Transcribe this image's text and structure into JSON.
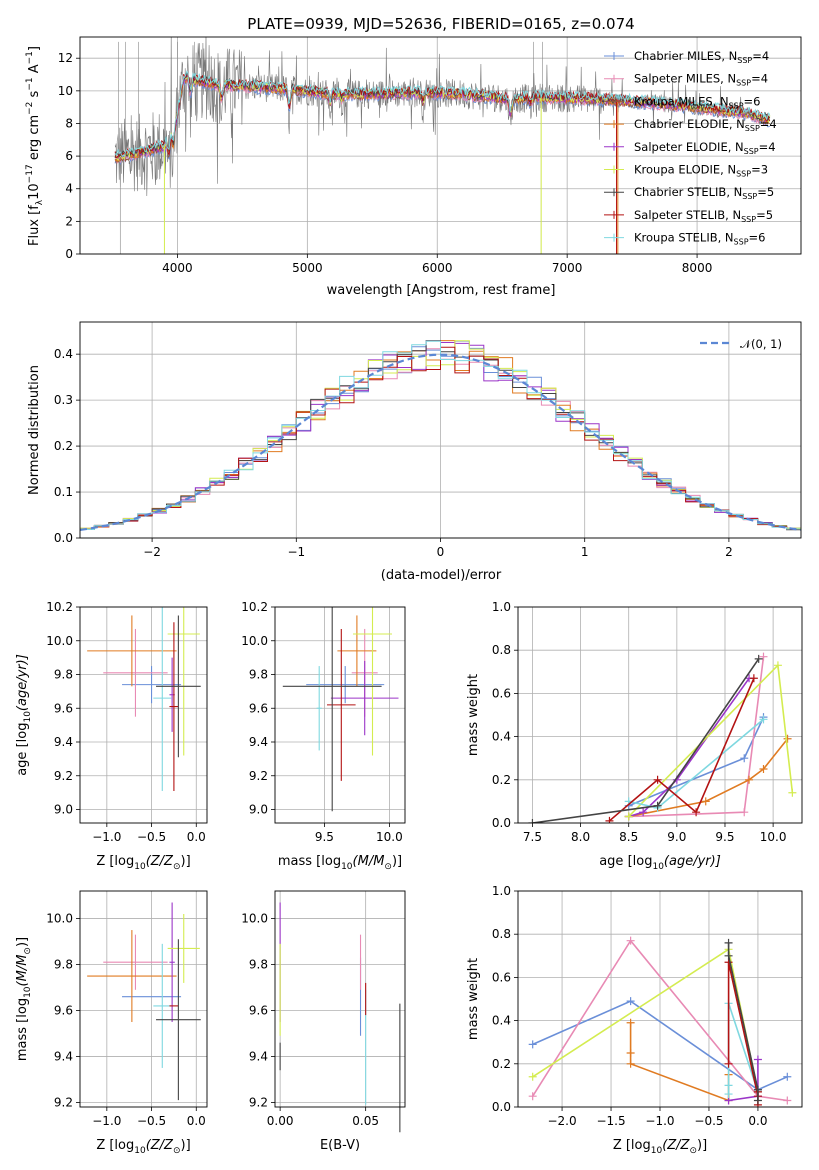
{
  "colors": {
    "Chabrier MILES": "#6a8fd8",
    "Salpeter MILES": "#e88ab4",
    "Kroupa MILES": "#8f5a3e",
    "Chabrier ELODIE": "#e07b22",
    "Salpeter ELODIE": "#9b35c8",
    "Kroupa ELODIE": "#d4ec50",
    "Chabrier STELIB": "#444444",
    "Salpeter STELIB": "#b31313",
    "Kroupa STELIB": "#7fd8e0"
  },
  "chart_data": [
    {
      "type": "line",
      "id": "spectrum",
      "title": "PLATE=0939, MJD=52636, FIBERID=0165, z=0.074",
      "xlabel": "wavelength [Angstrom, rest frame]",
      "ylabel": "Flux [f",
      "ylabel_sub": "λ",
      "ylabel_rest": "10",
      "ylabel_sup": "−17",
      "ylabel_units": " erg cm",
      "xlim": [
        3250,
        8800
      ],
      "ylim": [
        0,
        13.3
      ],
      "xticks": [
        4000,
        5000,
        6000,
        7000,
        8000
      ],
      "yticks": [
        0,
        2,
        4,
        6,
        8,
        10,
        12
      ],
      "legend_loc": "right",
      "legend": [
        {
          "label": "Chabrier MILES, N",
          "sub": "SSP",
          "val": "=4",
          "color": "#6a8fd8"
        },
        {
          "label": "Salpeter MILES, N",
          "sub": "SSP",
          "val": "=4",
          "color": "#e88ab4"
        },
        {
          "label": "Kroupa MILES, N",
          "sub": "SSP",
          "val": "=6",
          "color": "#8f5a3e"
        },
        {
          "label": "Chabrier ELODIE, N",
          "sub": "SSP",
          "val": "=4",
          "color": "#e07b22"
        },
        {
          "label": "Salpeter ELODIE, N",
          "sub": "SSP",
          "val": "=4",
          "color": "#9b35c8"
        },
        {
          "label": "Kroupa ELODIE, N",
          "sub": "SSP",
          "val": "=3",
          "color": "#d4ec50"
        },
        {
          "label": "Chabrier STELIB, N",
          "sub": "SSP",
          "val": "=5",
          "color": "#444444"
        },
        {
          "label": "Salpeter STELIB, N",
          "sub": "SSP",
          "val": "=5",
          "color": "#b31313"
        },
        {
          "label": "Kroupa STELIB, N",
          "sub": "SSP",
          "val": "=6",
          "color": "#7fd8e0"
        }
      ],
      "continuum": [
        [
          3520,
          5.9
        ],
        [
          3700,
          6.2
        ],
        [
          3900,
          6.6
        ],
        [
          3990,
          8.2
        ],
        [
          4050,
          10.8
        ],
        [
          4300,
          10.4
        ],
        [
          4500,
          10.3
        ],
        [
          4861,
          10.1
        ],
        [
          5200,
          9.8
        ],
        [
          5500,
          9.8
        ],
        [
          5900,
          9.9
        ],
        [
          6200,
          9.8
        ],
        [
          6563,
          9.5
        ],
        [
          6800,
          9.6
        ],
        [
          7200,
          9.5
        ],
        [
          7600,
          9.3
        ],
        [
          8000,
          9.0
        ],
        [
          8400,
          8.6
        ],
        [
          8550,
          8.2
        ]
      ]
    },
    {
      "type": "area",
      "id": "residuals",
      "xlabel": "(data-model)/error",
      "ylabel": "Normed distribution",
      "xlim": [
        -2.5,
        2.5
      ],
      "ylim": [
        0,
        0.47
      ],
      "xticks": [
        -2,
        -1,
        0,
        1,
        2
      ],
      "xtick_labels": [
        "−2",
        "−1",
        "0",
        "1",
        "2"
      ],
      "yticks": [
        0,
        0.1,
        0.2,
        0.3,
        0.4
      ],
      "legend_loc": "top-right",
      "legend_label": "𝒩(0, 1)",
      "curve": {
        "mu": 0,
        "sigma": 1
      }
    },
    {
      "type": "scatter",
      "id": "Z-age",
      "xlabel": "Z [log",
      "xlabel_sub": "10",
      "xlabel_rest": "(Z/Z",
      "xlabel_sun": "⊙",
      "xlabel_end": ")]",
      "ylabel": "age  [log",
      "ylabel_sub": "10",
      "ylabel_rest": "(age/yr)]",
      "xlim": [
        -1.3,
        0.12
      ],
      "ylim": [
        8.92,
        10.2
      ],
      "xticks": [
        -1.0,
        -0.5,
        0.0
      ],
      "xtick_labels": [
        "−1.0",
        "−0.5",
        "0.0"
      ],
      "yticks": [
        9.0,
        9.2,
        9.4,
        9.6,
        9.8,
        10.0,
        10.2
      ],
      "points": [
        {
          "x": -0.5,
          "xerr": 0.33,
          "y": 9.74,
          "yerr": 0.11,
          "color": "#6a8fd8"
        },
        {
          "x": -0.68,
          "xerr": 0.36,
          "y": 9.81,
          "yerr": 0.26,
          "color": "#e88ab4"
        },
        {
          "x": -0.72,
          "xerr": 0.5,
          "y": 9.94,
          "yerr": 0.21,
          "color": "#e07b22"
        },
        {
          "x": -0.27,
          "xerr": 0.03,
          "y": 9.68,
          "yerr": 0.22,
          "color": "#9b35c8"
        },
        {
          "x": -0.14,
          "xerr": 0.18,
          "y": 10.04,
          "yerr": 0.72,
          "color": "#d4ec50"
        },
        {
          "x": -0.38,
          "xerr": 0.1,
          "y": 9.66,
          "yerr": 0.55,
          "color": "#7fd8e0"
        },
        {
          "x": -0.25,
          "xerr": 0.05,
          "y": 9.61,
          "yerr": 0.5,
          "color": "#b31313"
        },
        {
          "x": -0.2,
          "xerr": 0.25,
          "y": 9.73,
          "yerr": 0.42,
          "color": "#444444"
        }
      ]
    },
    {
      "type": "scatter",
      "id": "mass-age",
      "xlabel": "mass [log",
      "xlabel_sub": "10",
      "xlabel_rest": "(M/M",
      "xlabel_sun": "⊙",
      "xlabel_end": ")]",
      "xlim": [
        9.12,
        10.12
      ],
      "ylim": [
        8.92,
        10.2
      ],
      "xticks": [
        9.5,
        10.0
      ],
      "yticks": [
        9.0,
        9.2,
        9.4,
        9.6,
        9.8,
        10.0,
        10.2
      ],
      "points": [
        {
          "x": 9.66,
          "xerr": 0.3,
          "y": 9.74,
          "yerr": 0.11,
          "color": "#6a8fd8"
        },
        {
          "x": 9.81,
          "xerr": 0.1,
          "y": 9.81,
          "yerr": 0.26,
          "color": "#e88ab4"
        },
        {
          "x": 9.75,
          "xerr": 0.15,
          "y": 9.94,
          "yerr": 0.21,
          "color": "#e07b22"
        },
        {
          "x": 9.81,
          "xerr": 0.26,
          "y": 9.66,
          "yerr": 0.22,
          "color": "#9b35c8"
        },
        {
          "x": 9.87,
          "xerr": 0.15,
          "y": 10.04,
          "yerr": 0.72,
          "color": "#d4ec50"
        },
        {
          "x": 9.46,
          "xerr": 0.02,
          "y": 9.6,
          "yerr": 0.25,
          "color": "#7fd8e0"
        },
        {
          "x": 9.63,
          "xerr": 0.11,
          "y": 9.62,
          "yerr": 0.45,
          "color": "#b31313"
        },
        {
          "x": 9.56,
          "xerr": 0.38,
          "y": 9.73,
          "yerr": 0.74,
          "color": "#444444"
        }
      ]
    },
    {
      "type": "line",
      "id": "age-weight",
      "xlabel": "age  [log",
      "xlabel_sub": "10",
      "xlabel_rest": "(age/yr)]",
      "ylabel": "mass weight",
      "xlim": [
        7.35,
        10.3
      ],
      "ylim": [
        0,
        1.0
      ],
      "xticks": [
        7.5,
        8.0,
        8.5,
        9.0,
        9.5,
        10.0
      ],
      "yticks": [
        0.0,
        0.2,
        0.4,
        0.6,
        0.8,
        1.0
      ],
      "series": [
        {
          "color": "#6a8fd8",
          "x": [
            8.5,
            9.7,
            9.9
          ],
          "y": [
            0.08,
            0.3,
            0.49
          ]
        },
        {
          "color": "#e88ab4",
          "x": [
            8.5,
            9.7,
            9.9
          ],
          "y": [
            0.03,
            0.05,
            0.77
          ]
        },
        {
          "color": "#e07b22",
          "x": [
            8.5,
            9.3,
            9.75,
            9.9,
            10.15
          ],
          "y": [
            0.03,
            0.1,
            0.2,
            0.25,
            0.39
          ]
        },
        {
          "color": "#9b35c8",
          "x": [
            8.5,
            8.65,
            9.0,
            9.75
          ],
          "y": [
            0.03,
            0.05,
            0.2,
            0.67
          ]
        },
        {
          "color": "#d4ec50",
          "x": [
            8.5,
            10.05,
            10.2
          ],
          "y": [
            0.03,
            0.73,
            0.14
          ]
        },
        {
          "color": "#7fd8e0",
          "x": [
            8.5,
            8.8,
            9.9
          ],
          "y": [
            0.1,
            0.07,
            0.48
          ]
        },
        {
          "color": "#b31313",
          "x": [
            8.3,
            8.8,
            9.2,
            9.8
          ],
          "y": [
            0.01,
            0.2,
            0.05,
            0.67
          ]
        },
        {
          "color": "#444444",
          "x": [
            7.5,
            8.8,
            9.85
          ],
          "y": [
            0.0,
            0.08,
            0.76
          ]
        }
      ]
    },
    {
      "type": "scatter",
      "id": "Z-mass",
      "xlabel": "Z [log",
      "xlabel_sub": "10",
      "xlabel_rest": "(Z/Z",
      "xlabel_sun": "⊙",
      "xlabel_end": ")]",
      "ylabel": "mass [log",
      "ylabel_sub": "10",
      "ylabel_rest": "(M/M",
      "ylabel_sun": "⊙",
      "ylabel_end": ")]",
      "xlim": [
        -1.3,
        0.12
      ],
      "ylim": [
        9.18,
        10.12
      ],
      "xticks": [
        -1.0,
        -0.5,
        0.0
      ],
      "xtick_labels": [
        "−1.0",
        "−0.5",
        "0.0"
      ],
      "yticks": [
        9.2,
        9.4,
        9.6,
        9.8,
        10.0
      ],
      "points": [
        {
          "x": -0.5,
          "xerr": 0.33,
          "y": 9.66,
          "yerr": 0.0,
          "color": "#6a8fd8"
        },
        {
          "x": -0.68,
          "xerr": 0.36,
          "y": 9.81,
          "yerr": 0.12,
          "color": "#e88ab4"
        },
        {
          "x": -0.72,
          "xerr": 0.5,
          "y": 9.75,
          "yerr": 0.2,
          "color": "#e07b22"
        },
        {
          "x": -0.27,
          "xerr": 0.03,
          "y": 9.81,
          "yerr": 0.26,
          "color": "#9b35c8"
        },
        {
          "x": -0.14,
          "xerr": 0.18,
          "y": 9.87,
          "yerr": 0.15,
          "color": "#d4ec50"
        },
        {
          "x": -0.38,
          "xerr": 0.1,
          "y": 9.62,
          "yerr": 0.27,
          "color": "#7fd8e0"
        },
        {
          "x": -0.25,
          "xerr": 0.05,
          "y": 9.62,
          "yerr": 0.0,
          "color": "#b31313"
        },
        {
          "x": -0.2,
          "xerr": 0.25,
          "y": 9.56,
          "yerr": 0.35,
          "color": "#444444"
        }
      ]
    },
    {
      "type": "scatter",
      "id": "ebv-mass",
      "xlabel": "E(B-V)",
      "xlim": [
        -0.003,
        0.073
      ],
      "ylim": [
        9.18,
        10.12
      ],
      "xticks": [
        0.0,
        0.05
      ],
      "xtick_labels": [
        "0.00",
        "0.05"
      ],
      "yticks": [
        9.2,
        9.4,
        9.6,
        9.8,
        10.0
      ],
      "points": [
        {
          "x": 0.047,
          "y": 9.66,
          "yerr": 0.17,
          "color": "#6a8fd8"
        },
        {
          "x": 0.047,
          "y": 9.81,
          "yerr": 0.12,
          "color": "#e88ab4"
        },
        {
          "x": 0.0,
          "y": 9.81,
          "yerr": 0.26,
          "color": "#9b35c8"
        },
        {
          "x": 0.0,
          "y": 9.69,
          "yerr": 0.2,
          "color": "#d4ec50"
        },
        {
          "x": 0.05,
          "y": 9.44,
          "yerr": 0.25,
          "color": "#7fd8e0"
        },
        {
          "x": 0.05,
          "y": 9.65,
          "yerr": 0.07,
          "color": "#b31313"
        },
        {
          "x": 0.07,
          "y": 9.35,
          "yerr": 0.28,
          "color": "#444444"
        },
        {
          "x": 0.0,
          "y": 9.4,
          "yerr": 0.06,
          "color": "#444444"
        }
      ]
    },
    {
      "type": "line",
      "id": "Z-weight",
      "xlabel": "Z [log",
      "xlabel_sub": "10",
      "xlabel_rest": "(Z/Z",
      "xlabel_sun": "⊙",
      "xlabel_end": ")]",
      "ylabel": "mass weight",
      "xlim": [
        -2.45,
        0.45
      ],
      "ylim": [
        0,
        1.0
      ],
      "xticks": [
        -2.0,
        -1.5,
        -1.0,
        -0.5,
        0.0
      ],
      "xtick_labels": [
        "−2.0",
        "−1.5",
        "−1.0",
        "−0.5",
        "0.0"
      ],
      "yticks": [
        0.0,
        0.2,
        0.4,
        0.6,
        0.8,
        1.0
      ],
      "series": [
        {
          "color": "#6a8fd8",
          "x": [
            -2.3,
            -1.3,
            0.0,
            0.3
          ],
          "y": [
            0.29,
            0.49,
            0.08,
            0.14
          ]
        },
        {
          "color": "#e88ab4",
          "x": [
            -2.3,
            -1.3,
            0.0,
            0.3
          ],
          "y": [
            0.05,
            0.77,
            0.05,
            0.03
          ]
        },
        {
          "color": "#e07b22",
          "x": [
            -1.3,
            -1.3,
            -1.3,
            -0.3,
            -0.3
          ],
          "y": [
            0.39,
            0.25,
            0.2,
            0.03,
            0.15
          ]
        },
        {
          "color": "#9b35c8",
          "x": [
            -0.3,
            0.0,
            0.0,
            0.0
          ],
          "y": [
            0.03,
            0.05,
            0.22,
            0.07
          ]
        },
        {
          "color": "#d4ec50",
          "x": [
            -2.3,
            -0.3,
            0.0
          ],
          "y": [
            0.14,
            0.73,
            0.07
          ]
        },
        {
          "color": "#7fd8e0",
          "x": [
            -0.3,
            -0.3,
            -0.3,
            0.0
          ],
          "y": [
            0.06,
            0.1,
            0.48,
            0.07
          ]
        },
        {
          "color": "#b31313",
          "x": [
            -0.3,
            -0.3,
            0.0,
            0.0,
            0.0
          ],
          "y": [
            0.2,
            0.67,
            0.05,
            0.01,
            0.07
          ]
        },
        {
          "color": "#444444",
          "x": [
            -0.3,
            -0.3,
            0.0,
            0.0
          ],
          "y": [
            0.76,
            0.7,
            0.08,
            0.03
          ]
        }
      ]
    }
  ]
}
